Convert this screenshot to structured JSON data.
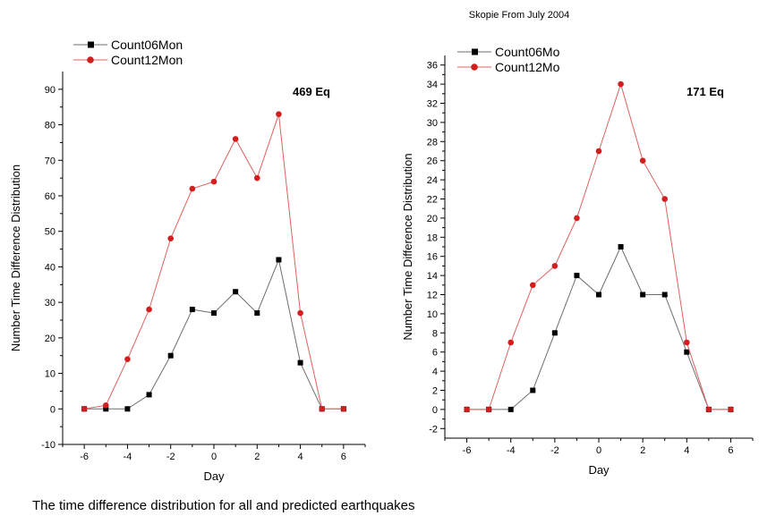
{
  "caption": "The time difference distribution for all and predicted earthquakes",
  "colors": {
    "black_series": "#000000",
    "red_series": "#d11f1f",
    "black_line": "#6e6e6e",
    "red_line": "#e06060"
  },
  "chart_data": [
    {
      "type": "line",
      "title": "",
      "xlabel": "Day",
      "ylabel": "Number Time Difference Distribution",
      "annotation": "469 Eq",
      "xlim": [
        -7,
        7
      ],
      "ylim": [
        -10,
        95
      ],
      "x_ticks": [
        -6,
        -4,
        -2,
        0,
        2,
        4,
        6
      ],
      "y_ticks": [
        -10,
        0,
        10,
        20,
        30,
        40,
        50,
        60,
        70,
        80,
        90
      ],
      "legend_position": "top-left",
      "x": [
        -6,
        -5,
        -4,
        -3,
        -2,
        -1,
        0,
        1,
        2,
        3,
        4,
        5,
        6
      ],
      "series": [
        {
          "name": "Count06Mon",
          "marker": "square",
          "color": "#000000",
          "values": [
            0,
            0,
            0,
            4,
            15,
            28,
            27,
            33,
            27,
            42,
            13,
            0,
            0
          ]
        },
        {
          "name": "Count12Mon",
          "marker": "circle",
          "color": "#d11f1f",
          "values": [
            0,
            1,
            14,
            28,
            48,
            62,
            64,
            76,
            65,
            83,
            27,
            0,
            0
          ]
        }
      ]
    },
    {
      "type": "line",
      "title": "Skopie From July 2004",
      "xlabel": "Day",
      "ylabel": "Number Time Difference Distribution",
      "annotation": "171 Eq",
      "xlim": [
        -7,
        7
      ],
      "ylim": [
        -3,
        37
      ],
      "x_ticks": [
        -6,
        -4,
        -2,
        0,
        2,
        4,
        6
      ],
      "y_ticks": [
        -2,
        0,
        2,
        4,
        6,
        8,
        10,
        12,
        14,
        16,
        18,
        20,
        22,
        24,
        26,
        28,
        30,
        32,
        34,
        36
      ],
      "legend_position": "top-left",
      "x": [
        -6,
        -5,
        -4,
        -3,
        -2,
        -1,
        0,
        1,
        2,
        3,
        4,
        5,
        6
      ],
      "series": [
        {
          "name": "Count06Mo",
          "marker": "square",
          "color": "#000000",
          "values": [
            0,
            0,
            0,
            2,
            8,
            14,
            12,
            17,
            12,
            12,
            6,
            0,
            0
          ]
        },
        {
          "name": "Count12Mo",
          "marker": "circle",
          "color": "#d11f1f",
          "values": [
            0,
            0,
            7,
            13,
            15,
            20,
            27,
            34,
            26,
            22,
            7,
            0,
            0
          ]
        }
      ]
    }
  ]
}
